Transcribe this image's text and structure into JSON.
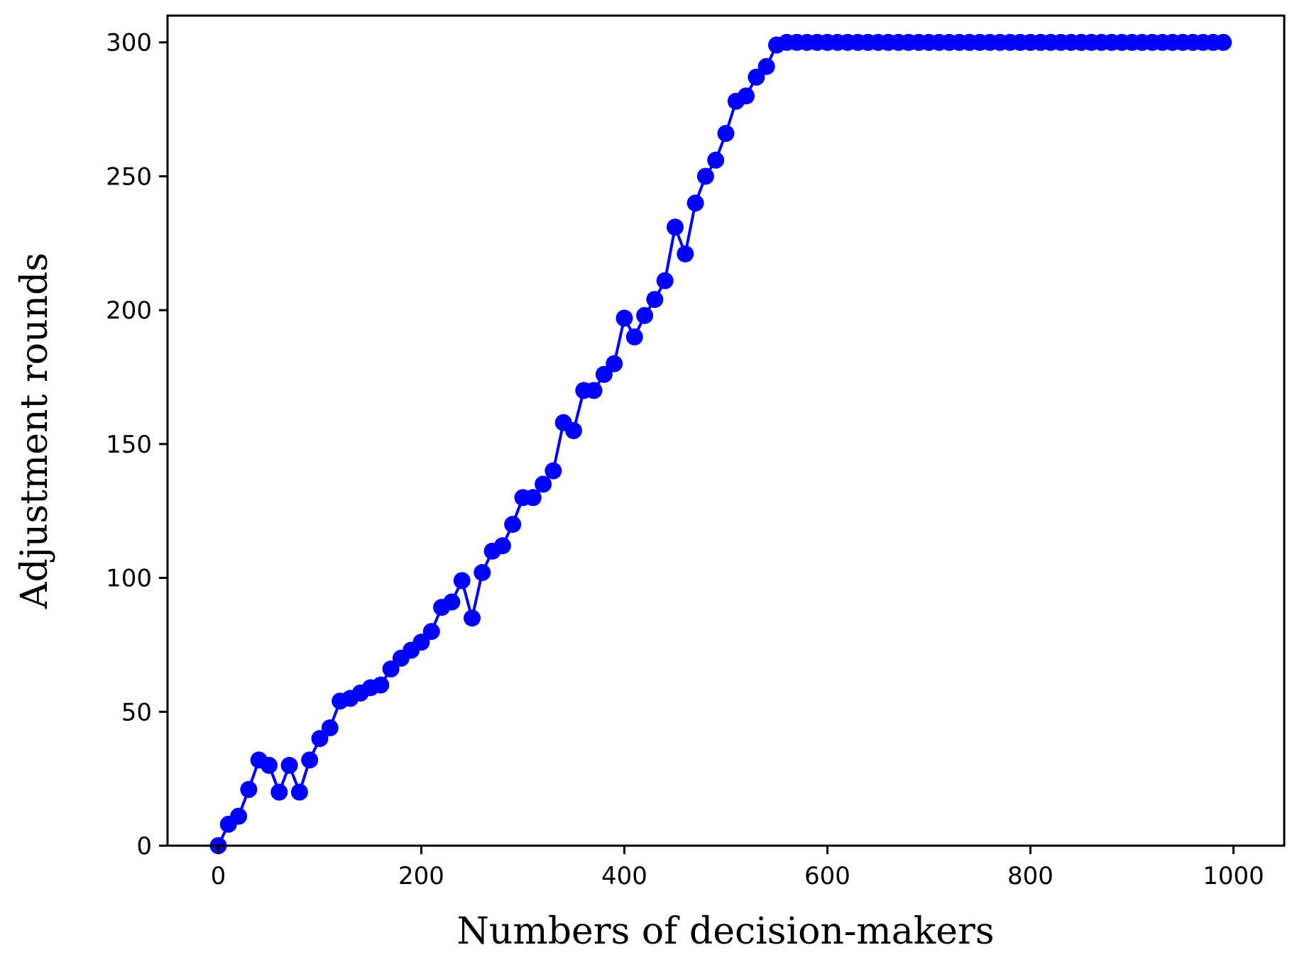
{
  "chart_data": {
    "type": "line",
    "title": "",
    "xlabel": "Numbers of decision-makers",
    "ylabel": "Adjustment rounds",
    "xlim": [
      -50,
      1050
    ],
    "ylim": [
      0,
      310
    ],
    "xticks": [
      0,
      200,
      400,
      600,
      800,
      1000
    ],
    "yticks": [
      0,
      50,
      100,
      150,
      200,
      250,
      300
    ],
    "grid": false,
    "legend": "none",
    "color": "#0000ff",
    "marker": "circle",
    "series": [
      {
        "x": [
          0,
          10,
          20,
          30,
          40,
          50,
          60,
          70,
          80,
          90,
          100,
          110,
          120,
          130,
          140,
          150,
          160,
          170,
          180,
          190,
          200,
          210,
          220,
          230,
          240,
          250,
          260,
          270,
          280,
          290,
          300,
          310,
          320,
          330,
          340,
          350,
          360,
          370,
          380,
          390,
          400,
          410,
          420,
          430,
          440,
          450,
          460,
          470,
          480,
          490,
          500,
          510,
          520,
          530,
          540,
          550,
          560,
          570,
          580,
          590,
          600,
          610,
          620,
          630,
          640,
          650,
          660,
          670,
          680,
          690,
          700,
          710,
          720,
          730,
          740,
          750,
          760,
          770,
          780,
          790,
          800,
          810,
          820,
          830,
          840,
          850,
          860,
          870,
          880,
          890,
          900,
          910,
          920,
          930,
          940,
          950,
          960,
          970,
          980,
          990
        ],
        "values": [
          0,
          8,
          11,
          21,
          32,
          30,
          20,
          30,
          20,
          32,
          40,
          44,
          54,
          55,
          57,
          59,
          60,
          66,
          70,
          73,
          76,
          80,
          89,
          91,
          99,
          85,
          102,
          110,
          112,
          120,
          130,
          130,
          135,
          140,
          158,
          155,
          170,
          170,
          176,
          180,
          197,
          190,
          198,
          204,
          211,
          231,
          221,
          240,
          250,
          256,
          266,
          278,
          280,
          287,
          291,
          299,
          300,
          300,
          300,
          300,
          300,
          300,
          300,
          300,
          300,
          300,
          300,
          300,
          300,
          300,
          300,
          300,
          300,
          300,
          300,
          300,
          300,
          300,
          300,
          300,
          300,
          300,
          300,
          300,
          300,
          300,
          300,
          300,
          300,
          300,
          300,
          300,
          300,
          300,
          300,
          300,
          300,
          300,
          300,
          300
        ]
      }
    ]
  }
}
